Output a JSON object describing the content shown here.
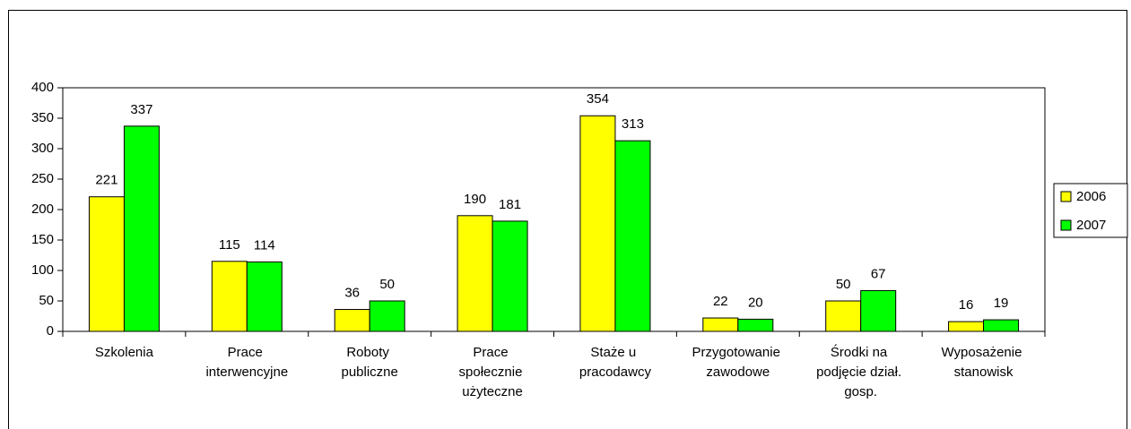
{
  "chart_data": {
    "type": "bar",
    "categories": [
      "Szkolenia",
      "Prace interwencyjne",
      "Roboty publiczne",
      "Prace społecznie użyteczne",
      "Staże u pracodawcy",
      "Przygotowanie zawodowe",
      "Środki na podjęcie dział. gosp.",
      "Wyposażenie stanowisk"
    ],
    "series": [
      {
        "name": "2006",
        "color": "#ffff00",
        "values": [
          221,
          115,
          36,
          190,
          354,
          22,
          50,
          16
        ]
      },
      {
        "name": "2007",
        "color": "#00ff00",
        "values": [
          337,
          114,
          50,
          181,
          313,
          20,
          67,
          19
        ]
      }
    ],
    "ylim": [
      0,
      400
    ],
    "yticks": [
      0,
      50,
      100,
      150,
      200,
      250,
      300,
      350,
      400
    ],
    "legend": "right"
  }
}
